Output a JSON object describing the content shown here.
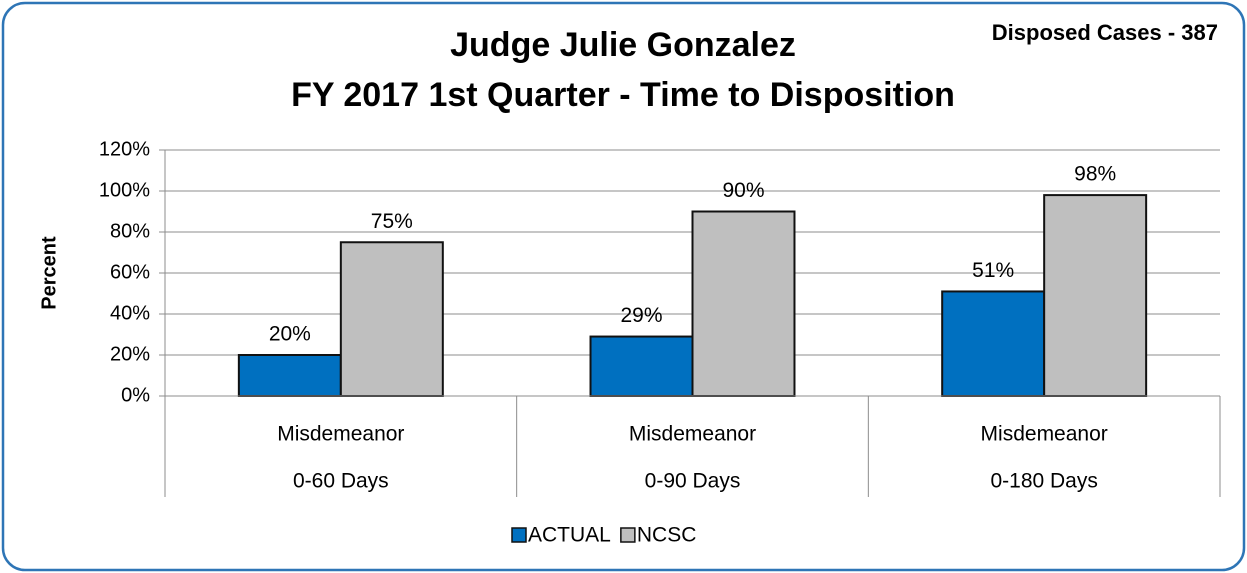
{
  "chart_data": {
    "type": "bar",
    "title": [
      "Judge Julie Gonzalez",
      "FY 2017 1st Quarter - Time to Disposition"
    ],
    "annotation": "Disposed Cases - 387",
    "y_label": "Percent",
    "categories": [
      [
        "Misdemeanor",
        "0-60 Days"
      ],
      [
        "Misdemeanor",
        "0-90 Days"
      ],
      [
        "Misdemeanor",
        "0-180 Days"
      ]
    ],
    "series": [
      {
        "name": "ACTUAL",
        "color": "#0070c0",
        "values": [
          20,
          29,
          51
        ],
        "value_labels": [
          "20%",
          "29%",
          "51%"
        ]
      },
      {
        "name": "NCSC",
        "color": "#bfbfbf",
        "values": [
          75,
          90,
          98
        ],
        "value_labels": [
          "75%",
          "90%",
          "98%"
        ]
      }
    ],
    "ylim": [
      0,
      120
    ],
    "yticks": [
      {
        "value": 0,
        "label": "0%"
      },
      {
        "value": 20,
        "label": "20%"
      },
      {
        "value": 40,
        "label": "40%"
      },
      {
        "value": 60,
        "label": "60%"
      },
      {
        "value": 80,
        "label": "80%"
      },
      {
        "value": 100,
        "label": "100%"
      },
      {
        "value": 120,
        "label": "120%"
      }
    ],
    "grid": true,
    "legend": "bottom"
  }
}
